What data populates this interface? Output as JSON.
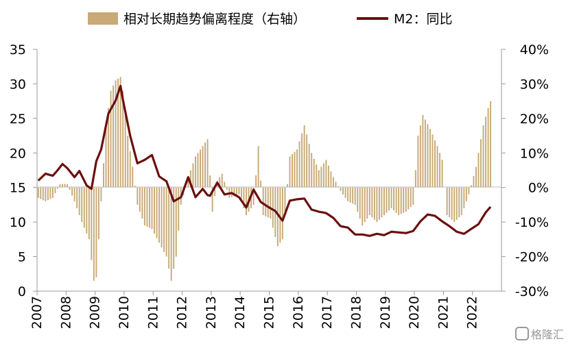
{
  "chart_data": {
    "type": "bar+line",
    "legend": {
      "placement": "top",
      "entries": [
        {
          "name": "相对长期趋势偏离程度（右轴）",
          "kind": "bar",
          "color": "#c8a977"
        },
        {
          "name": "M2：同比",
          "kind": "line",
          "color": "#6b0f0f"
        }
      ]
    },
    "x_axis": {
      "tick_labels": [
        "2007",
        "2008",
        "2009",
        "2010",
        "2011",
        "2012",
        "2013",
        "2014",
        "2015",
        "2016",
        "2017",
        "2018",
        "2019",
        "2020",
        "2021",
        "2022"
      ],
      "start": "2007-01",
      "frequency": "monthly"
    },
    "y_left": {
      "ylim": [
        0,
        35
      ],
      "ticks": [
        "0",
        "5",
        "10",
        "15",
        "20",
        "25",
        "30",
        "35"
      ]
    },
    "y_right": {
      "ylim": [
        -30,
        40
      ],
      "ticks": [
        "-30%",
        "-20%",
        "-10%",
        "0%",
        "10%",
        "20%",
        "30%",
        "40%"
      ]
    },
    "series": [
      {
        "name": "相对长期趋势偏离程度（右轴）",
        "axis": "right",
        "unit": "%",
        "color": "#c8a977",
        "anchors": [
          [
            "2007-01",
            -3
          ],
          [
            "2007-04",
            -4
          ],
          [
            "2007-07",
            -3
          ],
          [
            "2007-10",
            1
          ],
          [
            "2008-01",
            1
          ],
          [
            "2008-04",
            -4
          ],
          [
            "2008-07",
            -10
          ],
          [
            "2008-10",
            -15
          ],
          [
            "2008-12",
            -27
          ],
          [
            "2009-01",
            -26
          ],
          [
            "2009-03",
            -4
          ],
          [
            "2009-05",
            18
          ],
          [
            "2009-07",
            28
          ],
          [
            "2009-09",
            31
          ],
          [
            "2009-11",
            32
          ],
          [
            "2009-12",
            28
          ],
          [
            "2010-02",
            15
          ],
          [
            "2010-04",
            6
          ],
          [
            "2010-06",
            -5
          ],
          [
            "2010-09",
            -11
          ],
          [
            "2010-12",
            -12
          ],
          [
            "2011-03",
            -16
          ],
          [
            "2011-06",
            -20
          ],
          [
            "2011-08",
            -27
          ],
          [
            "2011-10",
            -20
          ],
          [
            "2011-12",
            -5
          ],
          [
            "2012-03",
            3
          ],
          [
            "2012-06",
            9
          ],
          [
            "2012-09",
            12
          ],
          [
            "2012-11",
            14
          ],
          [
            "2013-01",
            -7
          ],
          [
            "2013-03",
            2
          ],
          [
            "2013-05",
            4
          ],
          [
            "2013-08",
            -3
          ],
          [
            "2013-12",
            -2
          ],
          [
            "2014-03",
            -8
          ],
          [
            "2014-06",
            -5
          ],
          [
            "2014-08",
            12
          ],
          [
            "2014-10",
            -8
          ],
          [
            "2015-01",
            -9
          ],
          [
            "2015-04",
            -17
          ],
          [
            "2015-06",
            -15
          ],
          [
            "2015-09",
            9
          ],
          [
            "2015-12",
            11
          ],
          [
            "2016-03",
            18
          ],
          [
            "2016-06",
            10
          ],
          [
            "2016-09",
            5
          ],
          [
            "2016-12",
            8
          ],
          [
            "2017-03",
            3
          ],
          [
            "2017-06",
            -1
          ],
          [
            "2017-09",
            -4
          ],
          [
            "2017-12",
            -5
          ],
          [
            "2018-03",
            -11
          ],
          [
            "2018-06",
            -8
          ],
          [
            "2018-09",
            -10
          ],
          [
            "2018-12",
            -8
          ],
          [
            "2019-03",
            -6
          ],
          [
            "2019-06",
            -8
          ],
          [
            "2019-09",
            -7
          ],
          [
            "2019-12",
            -5
          ],
          [
            "2020-02",
            15
          ],
          [
            "2020-04",
            21
          ],
          [
            "2020-07",
            17
          ],
          [
            "2020-10",
            12
          ],
          [
            "2020-12",
            8
          ],
          [
            "2021-02",
            -8
          ],
          [
            "2021-05",
            -10
          ],
          [
            "2021-08",
            -8
          ],
          [
            "2021-11",
            -2
          ],
          [
            "2022-02",
            6
          ],
          [
            "2022-05",
            18
          ],
          [
            "2022-07",
            23
          ],
          [
            "2022-08",
            25
          ]
        ]
      },
      {
        "name": "M2：同比",
        "axis": "left",
        "unit": "%",
        "color": "#6b0f0f",
        "anchors": [
          [
            "2007-01",
            16.0
          ],
          [
            "2007-04",
            17.0
          ],
          [
            "2007-07",
            16.7
          ],
          [
            "2007-09",
            17.5
          ],
          [
            "2007-11",
            18.4
          ],
          [
            "2008-01",
            17.8
          ],
          [
            "2008-04",
            16.5
          ],
          [
            "2008-06",
            17.4
          ],
          [
            "2008-09",
            15.3
          ],
          [
            "2008-11",
            14.8
          ],
          [
            "2009-01",
            18.8
          ],
          [
            "2009-03",
            20.5
          ],
          [
            "2009-06",
            25.7
          ],
          [
            "2009-09",
            27.6
          ],
          [
            "2009-11",
            29.7
          ],
          [
            "2009-12",
            27.7
          ],
          [
            "2010-03",
            22.5
          ],
          [
            "2010-06",
            18.5
          ],
          [
            "2010-09",
            19.0
          ],
          [
            "2010-12",
            19.7
          ],
          [
            "2011-03",
            16.6
          ],
          [
            "2011-06",
            15.9
          ],
          [
            "2011-09",
            13.0
          ],
          [
            "2011-12",
            13.6
          ],
          [
            "2012-03",
            16.5
          ],
          [
            "2012-06",
            13.6
          ],
          [
            "2012-09",
            14.8
          ],
          [
            "2012-11",
            13.9
          ],
          [
            "2012-12",
            13.8
          ],
          [
            "2013-03",
            15.7
          ],
          [
            "2013-06",
            14.0
          ],
          [
            "2013-09",
            14.2
          ],
          [
            "2013-12",
            13.6
          ],
          [
            "2014-03",
            12.1
          ],
          [
            "2014-06",
            14.7
          ],
          [
            "2014-09",
            12.9
          ],
          [
            "2014-12",
            12.2
          ],
          [
            "2015-03",
            11.6
          ],
          [
            "2015-06",
            10.2
          ],
          [
            "2015-09",
            13.1
          ],
          [
            "2015-12",
            13.3
          ],
          [
            "2016-03",
            13.4
          ],
          [
            "2016-06",
            11.8
          ],
          [
            "2016-09",
            11.5
          ],
          [
            "2016-12",
            11.3
          ],
          [
            "2017-03",
            10.6
          ],
          [
            "2017-06",
            9.4
          ],
          [
            "2017-09",
            9.2
          ],
          [
            "2017-12",
            8.2
          ],
          [
            "2018-03",
            8.2
          ],
          [
            "2018-06",
            8.0
          ],
          [
            "2018-09",
            8.3
          ],
          [
            "2018-12",
            8.1
          ],
          [
            "2019-03",
            8.6
          ],
          [
            "2019-06",
            8.5
          ],
          [
            "2019-09",
            8.4
          ],
          [
            "2019-12",
            8.7
          ],
          [
            "2020-03",
            10.1
          ],
          [
            "2020-06",
            11.1
          ],
          [
            "2020-09",
            10.9
          ],
          [
            "2020-12",
            10.1
          ],
          [
            "2021-03",
            9.4
          ],
          [
            "2021-06",
            8.6
          ],
          [
            "2021-09",
            8.3
          ],
          [
            "2021-12",
            9.0
          ],
          [
            "2022-03",
            9.7
          ],
          [
            "2022-06",
            11.4
          ],
          [
            "2022-08",
            12.2
          ]
        ]
      }
    ],
    "watermark": "格隆汇"
  }
}
